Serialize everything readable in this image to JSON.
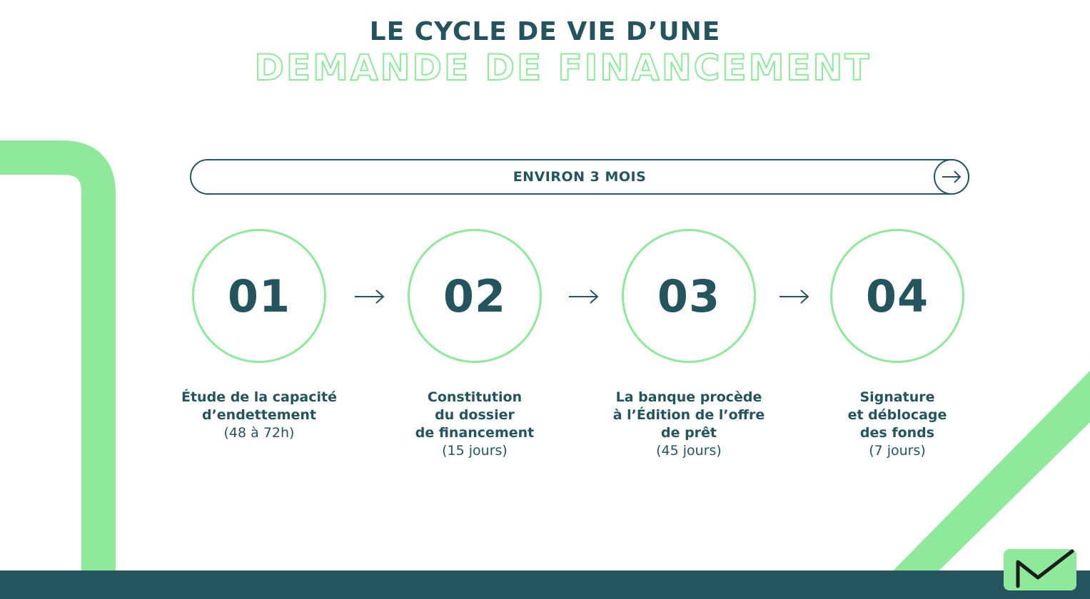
{
  "title": {
    "line1": "LE CYCLE DE VIE D’UNE",
    "line2": "DEMANDE DE FINANCEMENT"
  },
  "duration": {
    "label": "ENVIRON 3 MOIS",
    "icon": "arrow-right-icon"
  },
  "steps": [
    {
      "number": "01",
      "title": "Étude de la capacité\nd’endettement",
      "duration": "(48 à 72h)"
    },
    {
      "number": "02",
      "title": "Constitution\ndu dossier\nde financement",
      "duration": "(15 jours)"
    },
    {
      "number": "03",
      "title": "La banque procède\nà l’Édition de l’offre\nde prêt",
      "duration": "(45 jours)"
    },
    {
      "number": "04",
      "title": "Signature\net déblocage\ndes fonds",
      "duration": "(7 jours)"
    }
  ],
  "colors": {
    "primary": "#24555f",
    "accent": "#8ee99a",
    "background": "#ffffff"
  }
}
